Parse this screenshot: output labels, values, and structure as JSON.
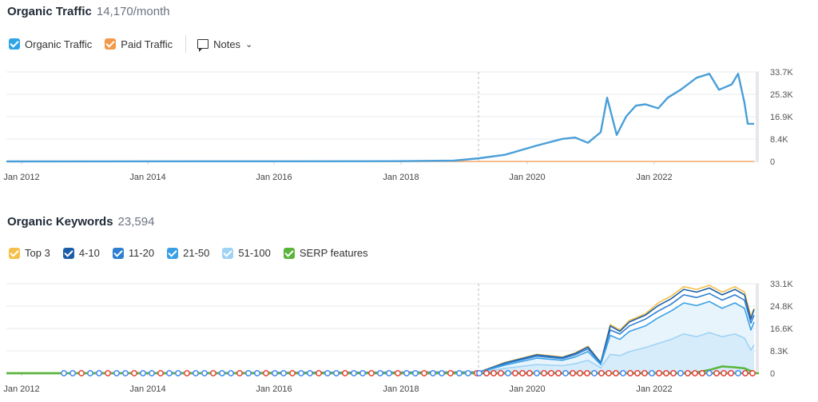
{
  "traffic": {
    "title": "Organic Traffic",
    "value": "14,170/month",
    "legend": [
      {
        "label": "Organic Traffic",
        "color": "#2fa4e7"
      },
      {
        "label": "Paid Traffic",
        "color": "#f2994a"
      }
    ],
    "notes_label": "Notes"
  },
  "keywords": {
    "title": "Organic Keywords",
    "value": "23,594",
    "legend": [
      {
        "label": "Top 3",
        "color": "#f5c04a"
      },
      {
        "label": "4-10",
        "color": "#1b5ea8"
      },
      {
        "label": "11-20",
        "color": "#2f7fd1"
      },
      {
        "label": "21-50",
        "color": "#3aa0e6"
      },
      {
        "label": "51-100",
        "color": "#9fd3f5"
      },
      {
        "label": "SERP features",
        "color": "#5ab43c"
      }
    ]
  },
  "chart_data": [
    {
      "type": "line",
      "title": "Organic Traffic",
      "x_tick_labels": [
        "Jan 2012",
        "Jan 2014",
        "Jan 2016",
        "Jan 2018",
        "Jan 2020",
        "Jan 2022"
      ],
      "y_tick_labels": [
        "33.7K",
        "25.3K",
        "16.9K",
        "8.4K",
        "0"
      ],
      "xlim": [
        2012.0,
        2023.7
      ],
      "ylim": [
        0,
        33700
      ],
      "grid": true,
      "series": [
        {
          "name": "Organic Traffic",
          "color": "#4a9fd8",
          "x": [
            2012.0,
            2018.0,
            2019.0,
            2019.4,
            2019.8,
            2020.3,
            2020.7,
            2020.9,
            2021.1,
            2021.3,
            2021.4,
            2021.55,
            2021.7,
            2021.85,
            2022.0,
            2022.2,
            2022.35,
            2022.55,
            2022.8,
            2023.0,
            2023.15,
            2023.35,
            2023.45,
            2023.55,
            2023.6,
            2023.7
          ],
          "y": [
            0,
            100,
            300,
            1200,
            2500,
            6000,
            8500,
            9000,
            7000,
            11000,
            24000,
            10000,
            17000,
            21000,
            21500,
            20000,
            24000,
            27000,
            31500,
            33000,
            27000,
            29000,
            33000,
            22000,
            14200,
            14170
          ]
        },
        {
          "name": "Paid Traffic",
          "color": "#f2a56b",
          "x": [
            2012.0,
            2023.7
          ],
          "y": [
            0,
            0
          ]
        }
      ]
    },
    {
      "type": "area",
      "title": "Organic Keywords",
      "x_tick_labels": [
        "Jan 2012",
        "Jan 2014",
        "Jan 2016",
        "Jan 2018",
        "Jan 2020",
        "Jan 2022"
      ],
      "y_tick_labels": [
        "33.1K",
        "24.8K",
        "16.6K",
        "8.3K",
        "0"
      ],
      "xlim": [
        2012.0,
        2023.7
      ],
      "ylim": [
        0,
        33100
      ],
      "grid": true,
      "x": [
        2012.0,
        2019.4,
        2019.8,
        2020.3,
        2020.7,
        2020.9,
        2021.1,
        2021.3,
        2021.45,
        2021.6,
        2021.75,
        2022.0,
        2022.2,
        2022.4,
        2022.6,
        2022.8,
        2023.0,
        2023.2,
        2023.4,
        2023.55,
        2023.65,
        2023.7
      ],
      "series": [
        {
          "name": "Top 3",
          "color": "#f5c04a",
          "values": [
            0,
            500,
            4000,
            7000,
            6000,
            7500,
            10000,
            4000,
            18000,
            16000,
            19500,
            22000,
            26000,
            28500,
            32000,
            31000,
            32500,
            30000,
            32000,
            30000,
            21000,
            24000
          ]
        },
        {
          "name": "4-10",
          "color": "#1b5ea8",
          "values": [
            0,
            450,
            3800,
            6800,
            5800,
            7300,
            9700,
            3900,
            17500,
            15500,
            19000,
            21500,
            25000,
            27500,
            31000,
            30000,
            31500,
            29000,
            31000,
            29000,
            20000,
            23600
          ]
        },
        {
          "name": "11-20",
          "color": "#2f7fd1",
          "values": [
            0,
            400,
            3500,
            6300,
            5400,
            6800,
            9000,
            3600,
            16000,
            14500,
            17500,
            20000,
            23000,
            25500,
            29000,
            28000,
            29500,
            27000,
            29000,
            27000,
            18500,
            21500
          ]
        },
        {
          "name": "21-50",
          "color": "#3aa0e6",
          "values": [
            0,
            350,
            3000,
            5600,
            4800,
            6000,
            8000,
            3200,
            14000,
            12500,
            15500,
            17500,
            20500,
            23000,
            26000,
            25000,
            26500,
            24000,
            26000,
            24000,
            16000,
            19000
          ]
        },
        {
          "name": "51-100",
          "color": "#9fd3f5",
          "values": [
            0,
            200,
            1800,
            3200,
            2800,
            3500,
            4800,
            2000,
            7000,
            6500,
            8000,
            9500,
            11000,
            12500,
            14500,
            13500,
            15000,
            13500,
            14500,
            13000,
            8500,
            10500
          ]
        },
        {
          "name": "SERP features",
          "color": "#5ab43c",
          "values": [
            0,
            0,
            0,
            0,
            0,
            0,
            0,
            0,
            0,
            0,
            0,
            0,
            0,
            0,
            0,
            300,
            1200,
            2500,
            2200,
            1800,
            800,
            500
          ]
        }
      ]
    }
  ]
}
